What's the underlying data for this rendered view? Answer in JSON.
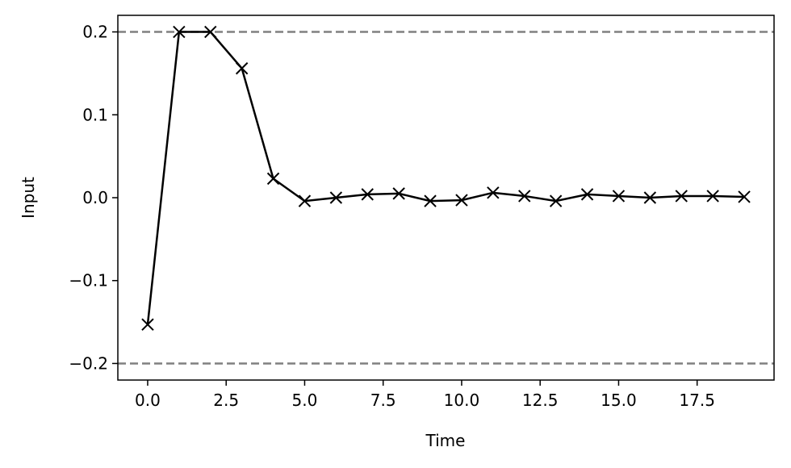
{
  "chart_data": {
    "type": "line",
    "xlabel": "Time",
    "ylabel": "Input",
    "x": [
      0,
      1,
      2,
      3,
      4,
      5,
      6,
      7,
      8,
      9,
      10,
      11,
      12,
      13,
      14,
      15,
      16,
      17,
      18,
      19
    ],
    "values": [
      -0.153,
      0.2,
      0.2,
      0.156,
      0.023,
      -0.004,
      0.0,
      0.004,
      0.005,
      -0.004,
      -0.003,
      0.006,
      0.002,
      -0.004,
      0.004,
      0.002,
      0.0,
      0.002,
      0.002,
      0.001
    ],
    "color": "#000000",
    "marker": "x",
    "hlines": [
      {
        "value": 0.2,
        "color": "#808080",
        "style": "dashed"
      },
      {
        "value": -0.2,
        "color": "#808080",
        "style": "dashed"
      }
    ],
    "xlim": [
      -0.95,
      19.95
    ],
    "ylim": [
      -0.22,
      0.22
    ],
    "xticks": [
      {
        "value": 0,
        "label": "0.0"
      },
      {
        "value": 2.5,
        "label": "2.5"
      },
      {
        "value": 5,
        "label": "5.0"
      },
      {
        "value": 7.5,
        "label": "7.5"
      },
      {
        "value": 10,
        "label": "10.0"
      },
      {
        "value": 12.5,
        "label": "12.5"
      },
      {
        "value": 15,
        "label": "15.0"
      },
      {
        "value": 17.5,
        "label": "17.5"
      }
    ],
    "yticks": [
      {
        "value": -0.2,
        "label": "−0.2"
      },
      {
        "value": -0.1,
        "label": "−0.1"
      },
      {
        "value": 0,
        "label": "0.0"
      },
      {
        "value": 0.1,
        "label": "0.1"
      },
      {
        "value": 0.2,
        "label": "0.2"
      }
    ],
    "grid": false
  }
}
